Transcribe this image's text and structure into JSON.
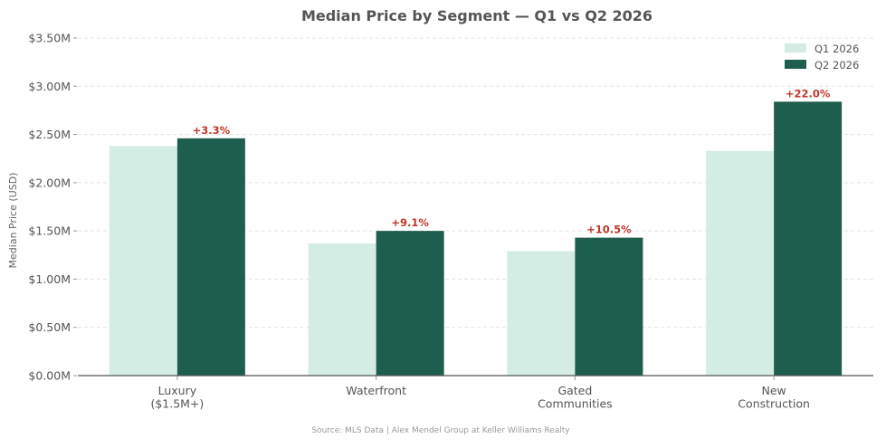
{
  "chart_data": {
    "type": "bar",
    "title": "Median Price by Segment — Q1 vs Q2 2026",
    "xlabel": "",
    "ylabel": "Median Price (USD)",
    "categories": [
      [
        "Luxury",
        "($1.5M+)"
      ],
      [
        "Waterfront"
      ],
      [
        "Gated",
        "Communities"
      ],
      [
        "New",
        "Construction"
      ]
    ],
    "series": [
      {
        "name": "Q1 2026",
        "color": "#d4ede4",
        "values": [
          2.38,
          1.37,
          1.29,
          2.33
        ]
      },
      {
        "name": "Q2 2026",
        "color": "#1e5e4e",
        "values": [
          2.46,
          1.5,
          1.43,
          2.84
        ]
      }
    ],
    "change_labels": [
      "+3.3%",
      "+9.1%",
      "+10.5%",
      "+22.0%"
    ],
    "change_label_color": "#c0392b",
    "ylim": [
      0,
      3.5
    ],
    "yticks": [
      "$0.00M",
      "$0.50M",
      "$1.00M",
      "$1.50M",
      "$2.00M",
      "$2.50M",
      "$3.00M",
      "$3.50M"
    ],
    "y_unit": "millions USD",
    "grid": true,
    "legend_position": "top-right",
    "source_note": "Source: MLS Data  |  Alex Mendel Group at Keller Williams Realty"
  }
}
